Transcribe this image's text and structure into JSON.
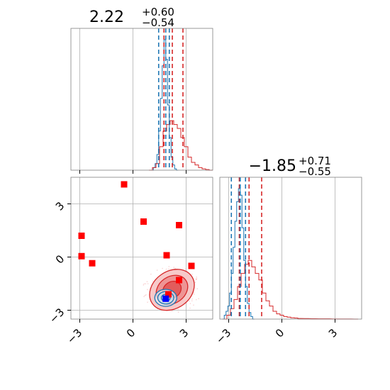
{
  "chart_data": [
    {
      "type": "histogram",
      "panel": "top-left",
      "title": {
        "base": "2.22",
        "sup": "+0.60",
        "sub": "−0.54"
      },
      "xlim": [
        -3.5,
        4.5
      ],
      "grid": true,
      "quantile_lines": {
        "blue": [
          1.45,
          1.85,
          2.05
        ],
        "red": [
          1.75,
          2.22,
          2.82
        ]
      },
      "series": [
        {
          "color": "#1f77b4",
          "x": [
            1.1,
            1.2,
            1.3,
            1.4,
            1.5,
            1.6,
            1.7,
            1.8,
            1.9,
            2.0,
            2.1,
            2.2,
            2.3,
            2.4,
            2.5
          ],
          "values": [
            0.0,
            0.02,
            0.05,
            0.12,
            0.3,
            0.55,
            0.8,
            1.0,
            0.85,
            0.5,
            0.25,
            0.1,
            0.04,
            0.01,
            0.0
          ]
        },
        {
          "color": "#d62728",
          "x": [
            1.0,
            1.2,
            1.4,
            1.6,
            1.8,
            2.0,
            2.2,
            2.4,
            2.6,
            2.8,
            3.0,
            3.2,
            3.4,
            3.6,
            3.8,
            4.0,
            4.2,
            4.4
          ],
          "values": [
            0.0,
            0.02,
            0.05,
            0.18,
            0.3,
            0.35,
            0.38,
            0.35,
            0.32,
            0.25,
            0.18,
            0.1,
            0.06,
            0.04,
            0.02,
            0.01,
            0.005,
            0.0
          ]
        }
      ]
    },
    {
      "type": "scatter",
      "panel": "bottom-left",
      "xlim": [
        -3.5,
        4.5
      ],
      "ylim": [
        -3.5,
        4.5
      ],
      "xticks": [
        "−3",
        "0",
        "3"
      ],
      "yticks": [
        "−3",
        "0",
        "3"
      ],
      "grid": true,
      "red_markers": [
        {
          "x": -2.9,
          "y": 1.2
        },
        {
          "x": -2.9,
          "y": 0.05
        },
        {
          "x": -2.3,
          "y": -0.35
        },
        {
          "x": -0.5,
          "y": 4.1
        },
        {
          "x": 0.6,
          "y": 2.0
        },
        {
          "x": 1.9,
          "y": 0.1
        },
        {
          "x": 2.6,
          "y": 1.8
        },
        {
          "x": 3.3,
          "y": -0.5
        },
        {
          "x": 2.6,
          "y": -1.3
        },
        {
          "x": 2.0,
          "y": -2.1
        }
      ],
      "blue_marker": {
        "x": 1.85,
        "y": -2.35
      },
      "red_contours": {
        "center": [
          2.2,
          -1.85
        ],
        "radii": [
          [
            0.55,
            0.45
          ],
          [
            0.95,
            0.75
          ],
          [
            1.35,
            1.05
          ]
        ],
        "angle": -35
      },
      "blue_contours": {
        "center": [
          1.85,
          -2.3
        ],
        "radii": [
          [
            0.25,
            0.2
          ],
          [
            0.45,
            0.35
          ],
          [
            0.62,
            0.48
          ]
        ]
      },
      "colors": {
        "red": "#d62728",
        "blue": "#1f77b4",
        "marker_red": "#ff0000",
        "marker_blue": "#0000ff"
      }
    },
    {
      "type": "histogram",
      "panel": "bottom-right",
      "title": {
        "base": "−1.85",
        "sup": "+0.71",
        "sub": "−0.55"
      },
      "xlim": [
        -3.5,
        4.5
      ],
      "xticks": [
        "−3",
        "0",
        "3"
      ],
      "grid": true,
      "quantile_lines": {
        "blue": [
          -2.85,
          -2.35,
          -2.05
        ],
        "red": [
          -2.4,
          -1.85,
          -1.14
        ]
      },
      "series": [
        {
          "color": "#1f77b4",
          "x": [
            -3.3,
            -3.2,
            -3.1,
            -3.0,
            -2.9,
            -2.8,
            -2.7,
            -2.6,
            -2.5,
            -2.4,
            -2.3,
            -2.2,
            -2.1,
            -2.0,
            -1.9,
            -1.8,
            -1.7,
            -1.6
          ],
          "values": [
            0.0,
            0.03,
            0.06,
            0.1,
            0.2,
            0.35,
            0.55,
            0.75,
            0.9,
            1.0,
            0.95,
            0.7,
            0.45,
            0.25,
            0.12,
            0.05,
            0.02,
            0.0
          ]
        },
        {
          "color": "#d62728",
          "x": [
            -3.2,
            -3.0,
            -2.8,
            -2.6,
            -2.4,
            -2.2,
            -2.0,
            -1.8,
            -1.6,
            -1.4,
            -1.2,
            -1.0,
            -0.8,
            -0.6,
            -0.4,
            -0.2,
            0.0,
            0.2,
            0.4,
            0.6,
            0.8,
            1.0,
            1.4,
            1.8,
            2.2,
            2.6,
            3.0,
            3.4,
            3.8,
            4.2
          ],
          "values": [
            0.0,
            0.03,
            0.08,
            0.15,
            0.25,
            0.35,
            0.42,
            0.45,
            0.4,
            0.35,
            0.3,
            0.2,
            0.14,
            0.1,
            0.06,
            0.04,
            0.03,
            0.02,
            0.015,
            0.01,
            0.008,
            0.005,
            0.004,
            0.003,
            0.002,
            0.002,
            0.001,
            0.001,
            0.001,
            0.0
          ]
        }
      ]
    }
  ]
}
